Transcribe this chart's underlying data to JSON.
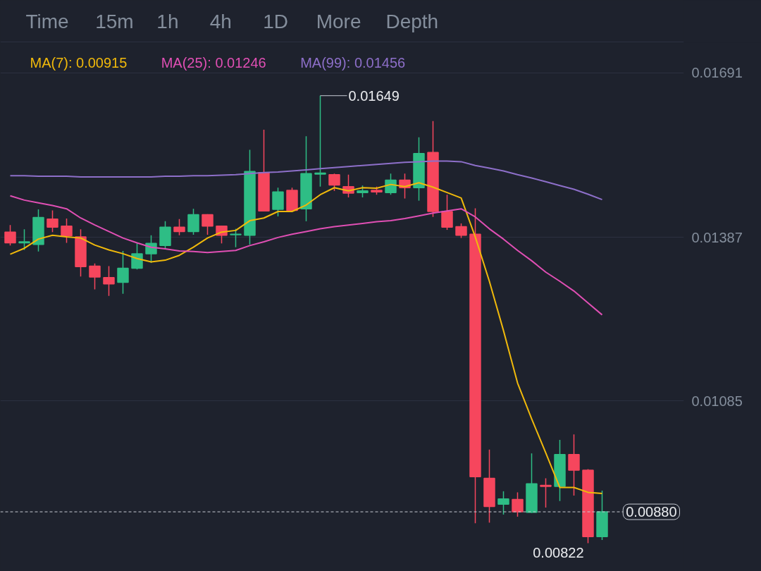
{
  "chart_data": {
    "type": "candlestick",
    "categories": [
      null,
      null,
      null,
      null,
      null,
      null,
      null,
      null,
      null,
      null,
      null,
      null,
      null,
      null,
      null,
      null,
      null,
      null,
      null,
      null,
      null,
      null,
      null,
      null,
      null,
      null,
      null,
      null,
      null,
      null,
      null,
      null,
      null,
      null,
      null,
      null,
      null,
      null,
      null,
      null,
      null,
      null,
      null
    ],
    "ohlc": [
      [
        0.01397,
        0.0141,
        0.01372,
        0.01377
      ],
      [
        0.01377,
        0.01402,
        0.01364,
        0.01379
      ],
      [
        0.01374,
        0.01439,
        0.01361,
        0.01424
      ],
      [
        0.01421,
        0.01437,
        0.01397,
        0.01406
      ],
      [
        0.01408,
        0.01422,
        0.01377,
        0.0139
      ],
      [
        0.01388,
        0.01402,
        0.01315,
        0.01333
      ],
      [
        0.01334,
        0.01339,
        0.01291,
        0.01314
      ],
      [
        0.01313,
        0.01334,
        0.01279,
        0.01301
      ],
      [
        0.01304,
        0.01362,
        0.01283,
        0.0133
      ],
      [
        0.0133,
        0.01376,
        0.01328,
        0.01357
      ],
      [
        0.01357,
        0.01391,
        0.0134,
        0.01376
      ],
      [
        0.01372,
        0.01417,
        0.01367,
        0.01406
      ],
      [
        0.01406,
        0.01421,
        0.01391,
        0.01398
      ],
      [
        0.01398,
        0.0144,
        0.01392,
        0.01429
      ],
      [
        0.01429,
        0.0143,
        0.01392,
        0.01408
      ],
      [
        0.01408,
        0.01409,
        0.01376,
        0.01391
      ],
      [
        0.01392,
        0.01403,
        0.01369,
        0.01393
      ],
      [
        0.01391,
        0.01549,
        0.01374,
        0.01509
      ],
      [
        0.01507,
        0.01586,
        0.01435,
        0.01436
      ],
      [
        0.01439,
        0.01479,
        0.01426,
        0.01471
      ],
      [
        0.01474,
        0.01479,
        0.01436,
        0.01437
      ],
      [
        0.0144,
        0.01574,
        0.01417,
        0.01505
      ],
      [
        0.01504,
        0.01649,
        0.01481,
        0.01506
      ],
      [
        0.01503,
        0.01505,
        0.01473,
        0.01484
      ],
      [
        0.01481,
        0.01503,
        0.01461,
        0.01469
      ],
      [
        0.0147,
        0.01483,
        0.01461,
        0.01473
      ],
      [
        0.01474,
        0.01481,
        0.01466,
        0.01471
      ],
      [
        0.0147,
        0.01505,
        0.01466,
        0.01493
      ],
      [
        0.01493,
        0.01505,
        0.01459,
        0.01479
      ],
      [
        0.01479,
        0.01572,
        0.01455,
        0.01542
      ],
      [
        0.01544,
        0.01602,
        0.01425,
        0.01435
      ],
      [
        0.01435,
        0.01466,
        0.01401,
        0.01406
      ],
      [
        0.01407,
        0.01413,
        0.01386,
        0.01391
      ],
      [
        0.01393,
        0.01441,
        0.00859,
        0.00945
      ],
      [
        0.00942,
        0.00995,
        0.0086,
        0.0089
      ],
      [
        0.00894,
        0.00918,
        0.00875,
        0.00904
      ],
      [
        0.00903,
        0.00916,
        0.00871,
        0.0088
      ],
      [
        0.00879,
        0.00988,
        0.00878,
        0.00932
      ],
      [
        0.00929,
        0.00942,
        0.00888,
        0.00927
      ],
      [
        0.00927,
        0.01013,
        0.009,
        0.00986
      ],
      [
        0.00986,
        0.01023,
        0.0091,
        0.00957
      ],
      [
        0.00957,
        0.00959,
        0.00822,
        0.00834
      ],
      [
        0.00834,
        0.00919,
        0.00828,
        0.0088
      ]
    ],
    "colors": [
      "#f6465d",
      "#2ebd85",
      "#2ebd85",
      "#f6465d",
      "#f6465d",
      "#f6465d",
      "#f6465d",
      "#f6465d",
      "#2ebd85",
      "#2ebd85",
      "#2ebd85",
      "#2ebd85",
      "#f6465d",
      "#2ebd85",
      "#f6465d",
      "#f6465d",
      "#2ebd85",
      "#2ebd85",
      "#f6465d",
      "#2ebd85",
      "#f6465d",
      "#2ebd85",
      "#2ebd85",
      "#f6465d",
      "#f6465d",
      "#2ebd85",
      "#f6465d",
      "#2ebd85",
      "#f6465d",
      "#2ebd85",
      "#f6465d",
      "#f6465d",
      "#f6465d",
      "#f6465d",
      "#f6465d",
      "#2ebd85",
      "#f6465d",
      "#2ebd85",
      "#f6465d",
      "#2ebd85",
      "#f6465d",
      "#f6465d",
      "#2ebd85"
    ],
    "series": [
      {
        "name": "MA(7): 0.00915",
        "type": "line",
        "color": "#f0b90b",
        "values": [
          0.01356,
          0.01367,
          0.01384,
          0.01391,
          0.01388,
          0.01386,
          0.01373,
          0.01364,
          0.01357,
          0.01348,
          0.01342,
          0.01345,
          0.01354,
          0.01369,
          0.01386,
          0.01397,
          0.014,
          0.01418,
          0.01423,
          0.01435,
          0.01435,
          0.01447,
          0.01466,
          0.01479,
          0.01473,
          0.01479,
          0.01478,
          0.01485,
          0.01481,
          0.01488,
          0.0148,
          0.0147,
          0.0146,
          0.01388,
          0.01306,
          0.01215,
          0.01118,
          0.01052,
          0.00989,
          0.00925,
          0.00925,
          0.00916,
          0.00914
        ]
      },
      {
        "name": "MA(25): 0.01246",
        "type": "line",
        "color": "#e04fb4",
        "values": [
          0.01464,
          0.01456,
          0.01451,
          0.01446,
          0.0144,
          0.01423,
          0.0141,
          0.01398,
          0.01386,
          0.01377,
          0.01369,
          0.01366,
          0.01362,
          0.01361,
          0.01359,
          0.01361,
          0.01363,
          0.01372,
          0.01379,
          0.01387,
          0.01393,
          0.01398,
          0.01403,
          0.01407,
          0.0141,
          0.01413,
          0.01416,
          0.01418,
          0.01422,
          0.01427,
          0.01432,
          0.01436,
          0.0144,
          0.01425,
          0.01403,
          0.01384,
          0.01363,
          0.01344,
          0.01323,
          0.01306,
          0.01288,
          0.01266,
          0.01244
        ]
      },
      {
        "name": "MA(99): 0.01456",
        "type": "line",
        "color": "#8d6fc9",
        "values": [
          0.01501,
          0.01501,
          0.015,
          0.015,
          0.015,
          0.01499,
          0.01499,
          0.01499,
          0.01499,
          0.01499,
          0.01499,
          0.015,
          0.015,
          0.01501,
          0.01501,
          0.01502,
          0.01503,
          0.01505,
          0.01507,
          0.01508,
          0.0151,
          0.01512,
          0.01514,
          0.01516,
          0.01518,
          0.0152,
          0.01522,
          0.01524,
          0.01526,
          0.01527,
          0.01528,
          0.01528,
          0.01527,
          0.0152,
          0.01515,
          0.0151,
          0.01503,
          0.01497,
          0.0149,
          0.01483,
          0.01476,
          0.01467,
          0.01457
        ]
      }
    ],
    "ylim": [
      0.0077,
      0.01747
    ],
    "yticks": [
      0.01085,
      0.01387,
      0.01691
    ],
    "grid": "y",
    "tick_labels": "y",
    "legend": "top",
    "ref_lines": [
      {
        "axis": "y",
        "value": 0.0088,
        "label": "0.00880",
        "line_style": "dashed"
      }
    ],
    "annotations": [
      "Time",
      "15m",
      "1h",
      "4h",
      "1D",
      "More",
      "Depth",
      "0.01649",
      "0.00822"
    ]
  }
}
